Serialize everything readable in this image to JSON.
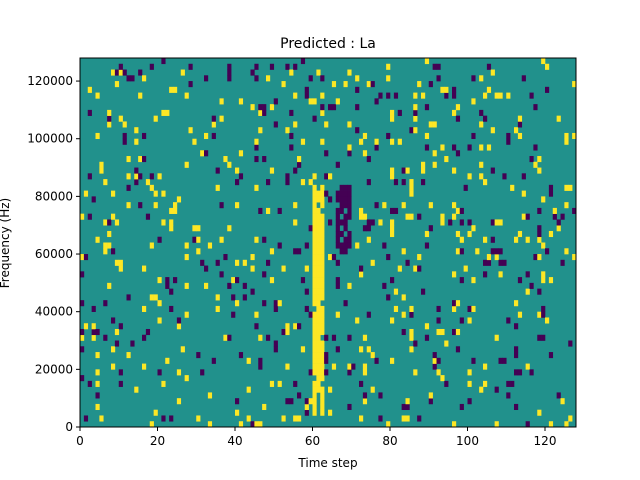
{
  "chart_data": {
    "type": "heatmap",
    "title": "Predicted : La",
    "xlabel": "Time step",
    "ylabel": "Frequency (Hz)",
    "xlim": [
      0,
      128
    ],
    "ylim": [
      0,
      128000
    ],
    "xticks": [
      0,
      20,
      40,
      60,
      80,
      100,
      120
    ],
    "xtick_labels": [
      "0",
      "20",
      "40",
      "60",
      "80",
      "100",
      "120"
    ],
    "yticks": [
      0,
      20000,
      40000,
      60000,
      80000,
      100000,
      120000
    ],
    "ytick_labels": [
      "0",
      "20000",
      "40000",
      "60000",
      "80000",
      "100000",
      "120000"
    ],
    "colormap": "viridis",
    "colors": {
      "background": "#21918c",
      "high": "#fde725",
      "low": "#440154"
    },
    "grid": false,
    "rows": 64,
    "cols": 128,
    "values": [
      -1,
      0,
      1
    ],
    "bright_band_time_steps": [
      60,
      62
    ]
  }
}
